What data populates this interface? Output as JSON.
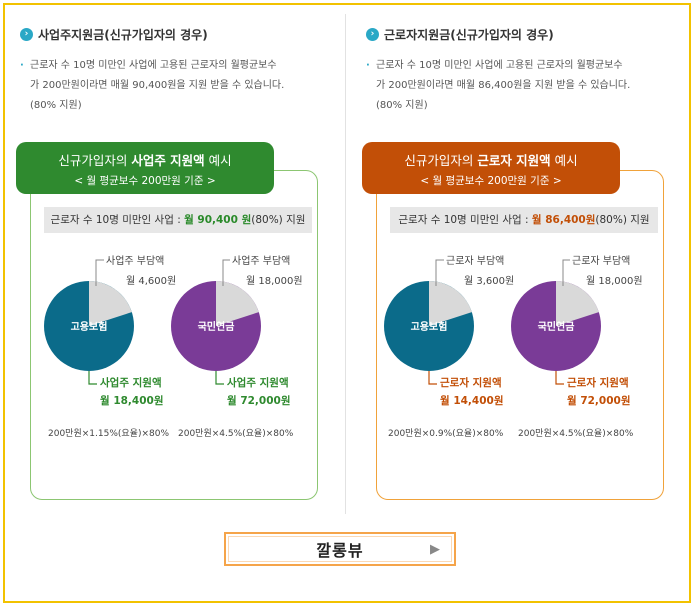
{
  "left": {
    "heading": "사업주지원금(신규가입자의 경우)",
    "desc_line1": "근로자 수 10명 미만인 사업에 고용된 근로자의 월평균보수",
    "desc_line2": "가 200만원이라면 매월 90,400원을 지원 받을 수 있습니다.",
    "desc_line3": "(80% 지원)",
    "card_title_pre": "신규가입자의 ",
    "card_title_bold": "사업주 지원액",
    "card_title_post": " 예시",
    "card_subtitle": "< 월 평균보수 200만원 기준 >",
    "highlight_pre": "근로자 수 10명 미만인 사업 : ",
    "highlight_amount": "월 90,400 원",
    "highlight_post": "(80%) 지원",
    "pie1": {
      "center_label": "고용보험",
      "share_label": "사업주 부담액",
      "share_amount": "월 4,600원",
      "support_label": "사업주 지원액",
      "support_amount": "월 18,400원",
      "formula": "200만원×1.15%(요율)×80%",
      "support_fraction": 0.8
    },
    "pie2": {
      "center_label": "국민연금",
      "share_label": "사업주 부담액",
      "share_amount": "월 18,000원",
      "support_label": "사업주 지원액",
      "support_amount": "월 72,000원",
      "formula": "200만원×4.5%(요율)×80%",
      "support_fraction": 0.8
    }
  },
  "right": {
    "heading": "근로자지원금(신규가입자의 경우)",
    "desc_line1": "근로자 수 10명 미만인 사업에 고용된 근로자의 월평균보수",
    "desc_line2": "가 200만원이라면 매월 86,400원을 지원 받을 수 있습니다.",
    "desc_line3": "(80% 지원)",
    "card_title_pre": "신규가입자의 ",
    "card_title_bold": "근로자 지원액",
    "card_title_post": " 예시",
    "card_subtitle": "< 월 평균보수 200만원 기준 >",
    "highlight_pre": "근로자 수 10명 미만인 사업 : ",
    "highlight_amount": "월 86,400원",
    "highlight_post": "(80%) 지원",
    "pie1": {
      "center_label": "고용보험",
      "share_label": "근로자 부담액",
      "share_amount": "월 3,600원",
      "support_label": "근로자 지원액",
      "support_amount": "월 14,400원",
      "formula": "200만원×0.9%(요율)×80%",
      "support_fraction": 0.8
    },
    "pie2": {
      "center_label": "국민연금",
      "share_label": "근로자 부담액",
      "share_amount": "월 18,000원",
      "support_label": "근로자 지원액",
      "support_amount": "월 72,000원",
      "formula": "200만원×4.5%(요율)×80%",
      "support_fraction": 0.8
    }
  },
  "colors": {
    "employment_insurance": "#0b6b8a",
    "national_pension": "#7a3b97",
    "burden": "#d9d9d9",
    "green": "#2f8a2f",
    "orange": "#c24f07",
    "frame": "#f2c200"
  },
  "button": {
    "label": "깔롱뷰",
    "arrow": "▶"
  }
}
